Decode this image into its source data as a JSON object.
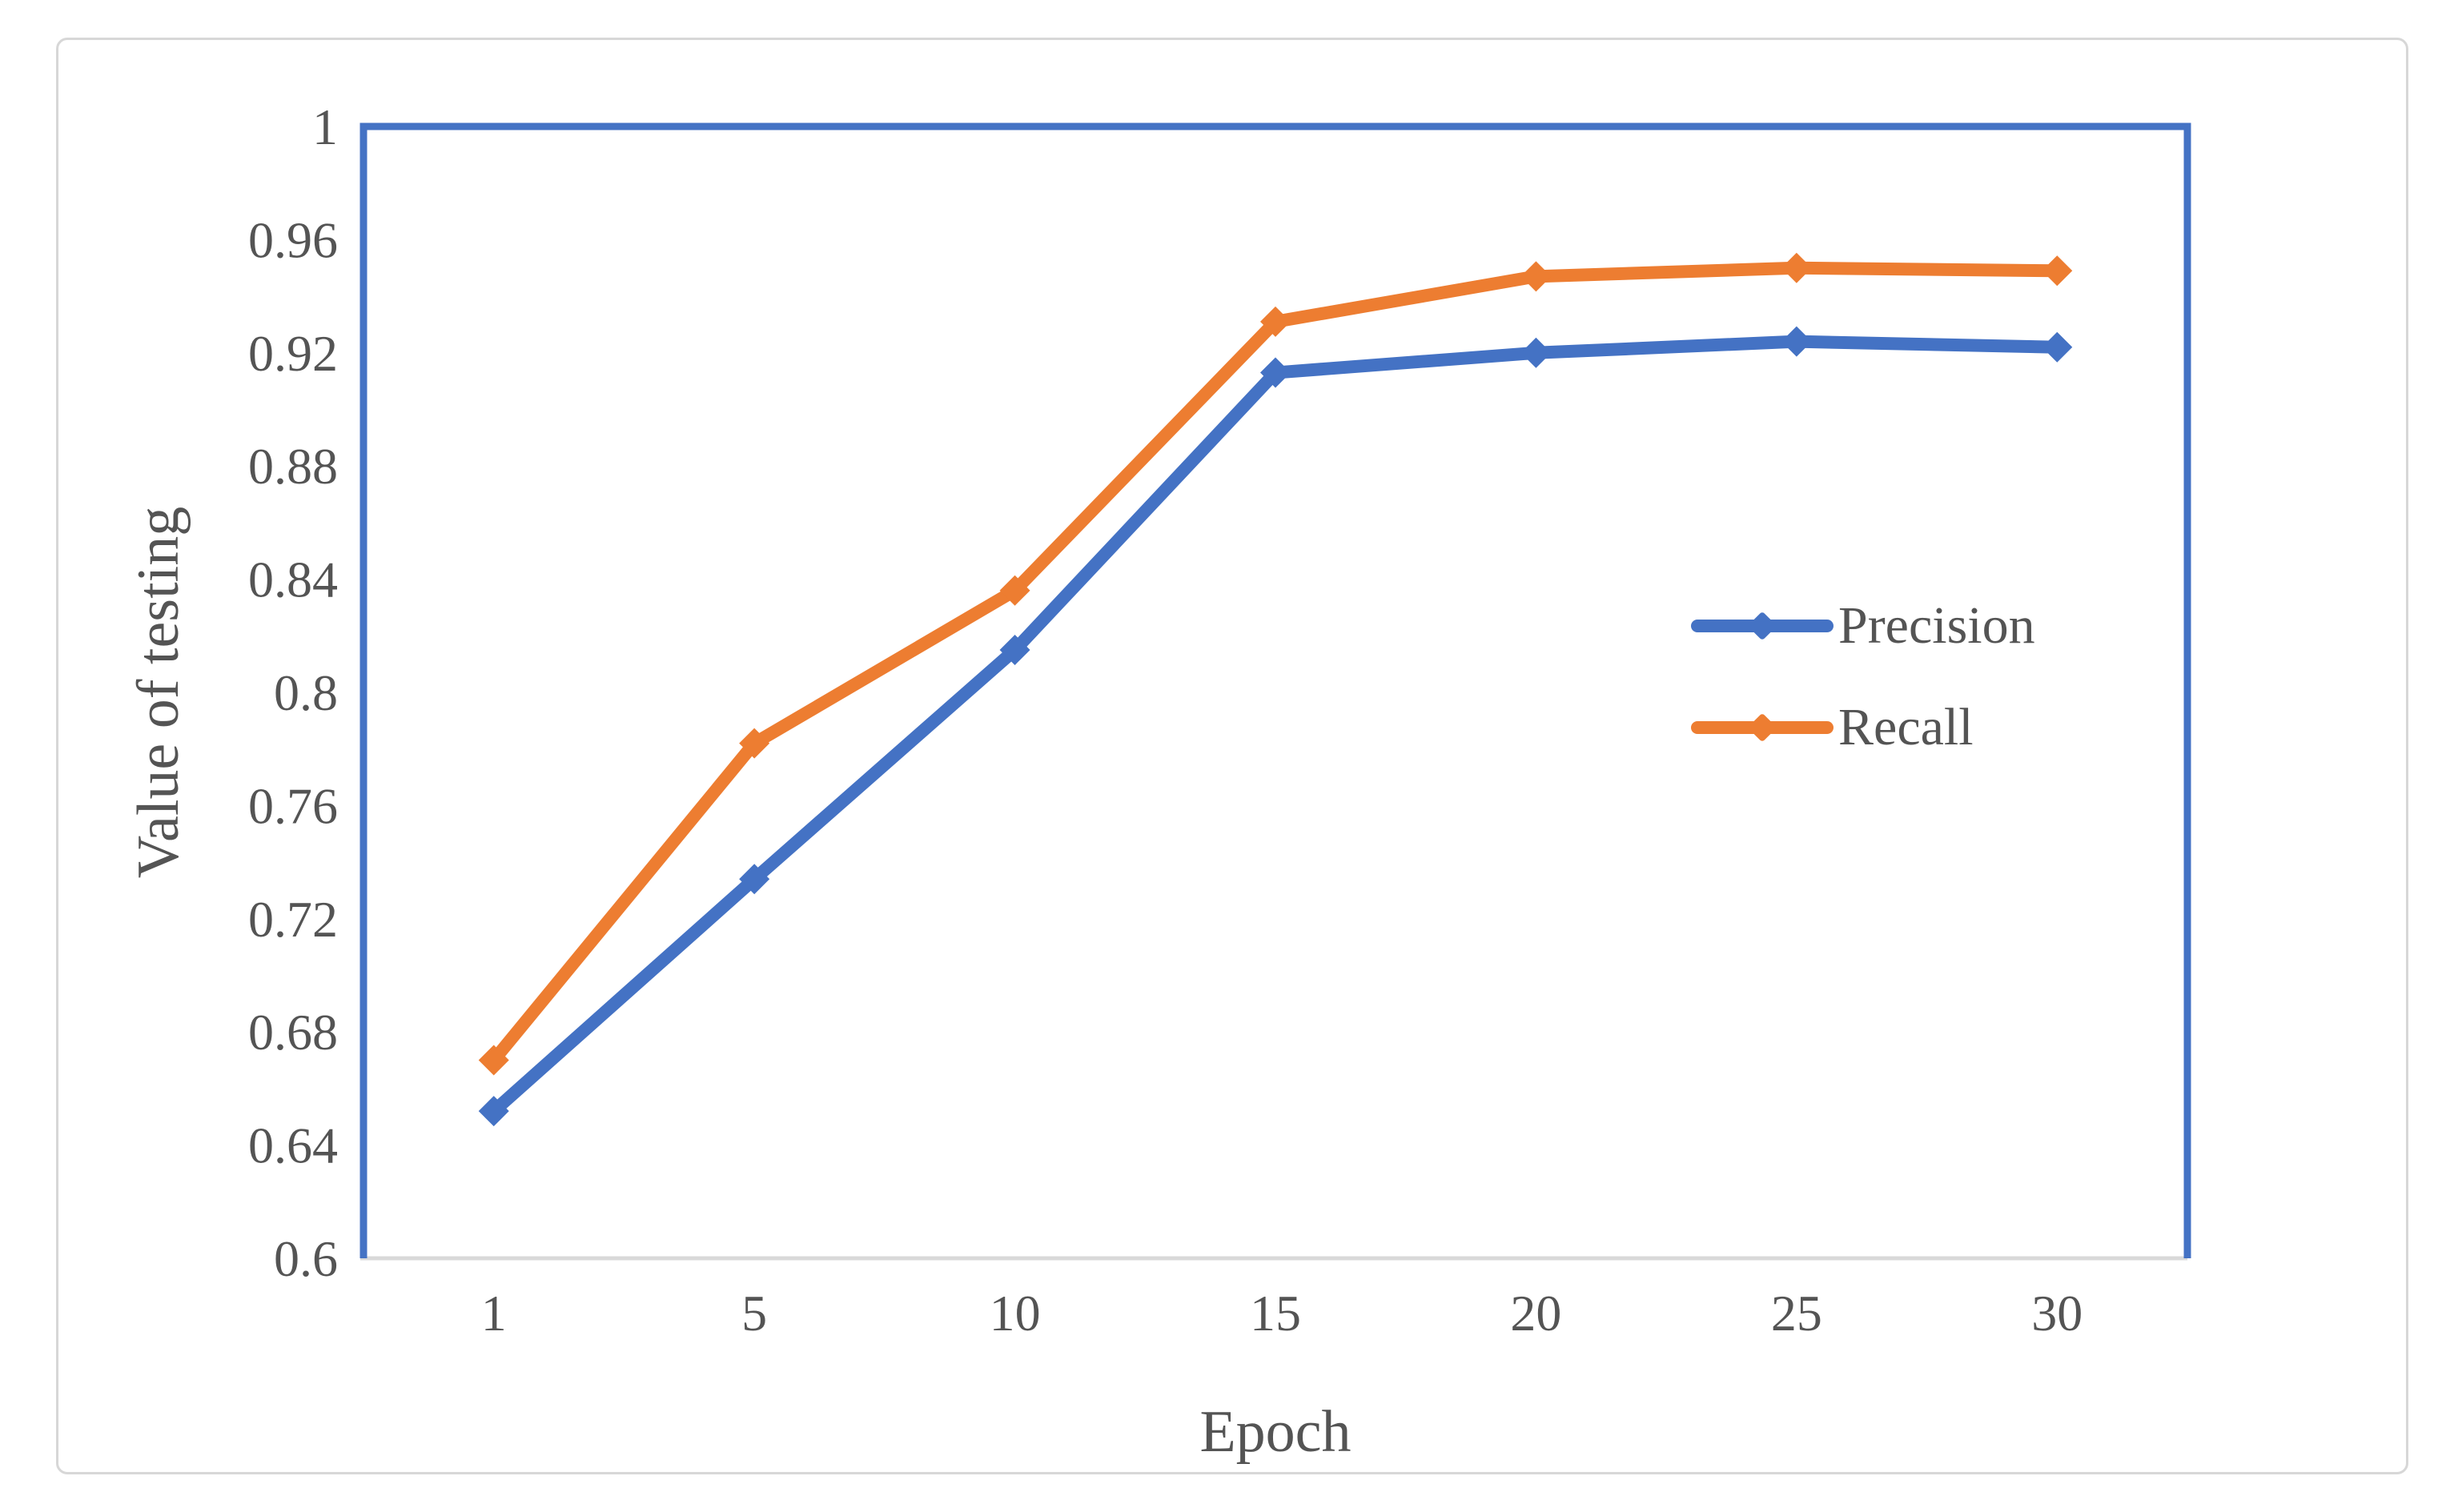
{
  "chart_data": {
    "type": "line",
    "title": "",
    "xlabel": "Epoch",
    "ylabel": "Value of testing",
    "categories": [
      "1",
      "5",
      "10",
      "15",
      "20",
      "25",
      "30"
    ],
    "series": [
      {
        "name": "Precision",
        "color": "#4472C4",
        "values": [
          0.652,
          0.734,
          0.815,
          0.913,
          0.92,
          0.924,
          0.922
        ]
      },
      {
        "name": "Recall",
        "color": "#ED7D31",
        "values": [
          0.67,
          0.782,
          0.836,
          0.931,
          0.947,
          0.95,
          0.949
        ]
      }
    ],
    "ylim": [
      0.6,
      1.0
    ],
    "ytick_step": 0.04,
    "ytick_labels": [
      "1",
      "0.96",
      "0.92",
      "0.88",
      "0.84",
      "0.8",
      "0.76",
      "0.72",
      "0.68",
      "0.64",
      "0.6"
    ],
    "grid": false,
    "marker": "diamond",
    "legend_position": "inside-right",
    "colors": {
      "plot_border": "#4472C4",
      "baseline": "#d9d9d9",
      "figure_border": "#d7d7d7",
      "text": "#545454"
    }
  }
}
